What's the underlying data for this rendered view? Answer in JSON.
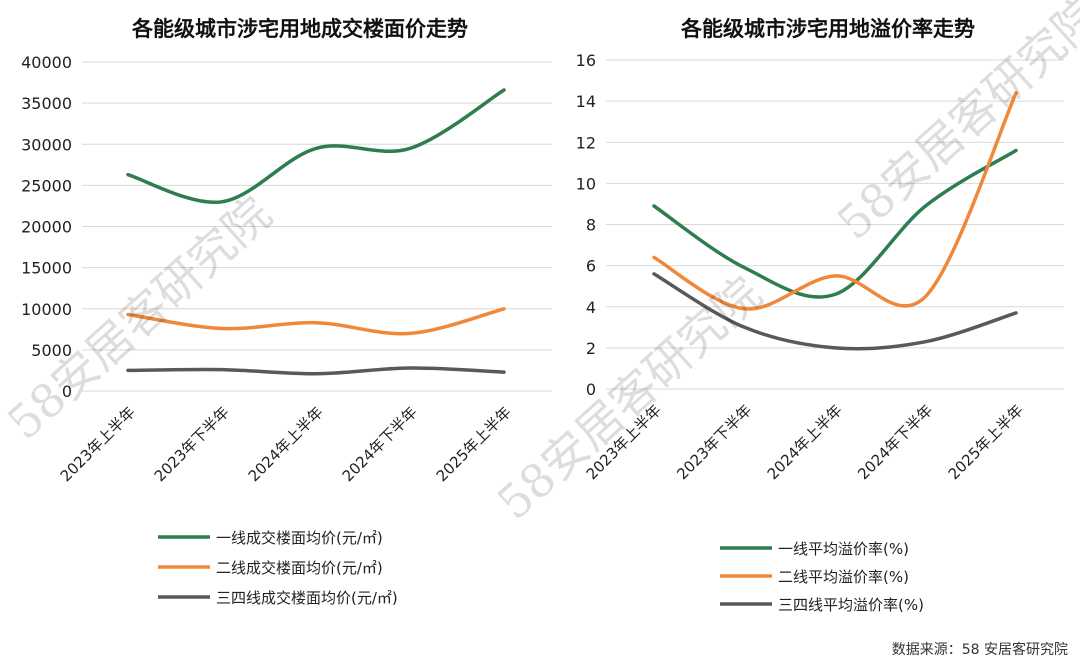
{
  "colors": {
    "tier1": "#2e7d4f",
    "tier2": "#f0883a",
    "tier34": "#595959"
  },
  "source_note": "数据来源：58 安居客研究院",
  "watermark": "58安居客研究院",
  "chart_data": [
    {
      "type": "line",
      "title": "各能级城市涉宅用地成交楼面价走势",
      "categories": [
        "2023年上半年",
        "2023年下半年",
        "2024年上半年",
        "2024年下半年",
        "2025年上半年"
      ],
      "ylim": [
        0,
        40000
      ],
      "yticks": [
        "0",
        "5000",
        "10000",
        "15000",
        "20000",
        "25000",
        "30000",
        "35000",
        "40000"
      ],
      "grid": true,
      "legend_position": "bottom",
      "series": [
        {
          "name": "一线成交楼面均价(元/㎡)",
          "color_key": "tier1",
          "values": [
            26300,
            23000,
            29500,
            29500,
            36600
          ]
        },
        {
          "name": "二线成交楼面均价(元/㎡)",
          "color_key": "tier2",
          "values": [
            9300,
            7600,
            8300,
            7000,
            10000
          ]
        },
        {
          "name": "三四线成交楼面均价(元/㎡)",
          "color_key": "tier34",
          "values": [
            2500,
            2600,
            2100,
            2800,
            2300
          ]
        }
      ]
    },
    {
      "type": "line",
      "title": "各能级城市涉宅用地溢价率走势",
      "categories": [
        "2023年上半年",
        "2023年下半年",
        "2024年上半年",
        "2024年下半年",
        "2025年上半年"
      ],
      "ylim": [
        0,
        16
      ],
      "yticks": [
        "0",
        "2",
        "4",
        "6",
        "8",
        "10",
        "12",
        "14",
        "16"
      ],
      "grid": true,
      "legend_position": "bottom",
      "series": [
        {
          "name": "一线平均溢价率(%)",
          "color_key": "tier1",
          "values": [
            8.9,
            5.9,
            4.6,
            8.9,
            11.6
          ]
        },
        {
          "name": "二线平均溢价率(%)",
          "color_key": "tier2",
          "values": [
            6.4,
            3.9,
            5.5,
            4.5,
            14.4
          ]
        },
        {
          "name": "三四线平均溢价率(%)",
          "color_key": "tier34",
          "values": [
            5.6,
            3.0,
            2.0,
            2.3,
            3.7
          ]
        }
      ]
    }
  ]
}
